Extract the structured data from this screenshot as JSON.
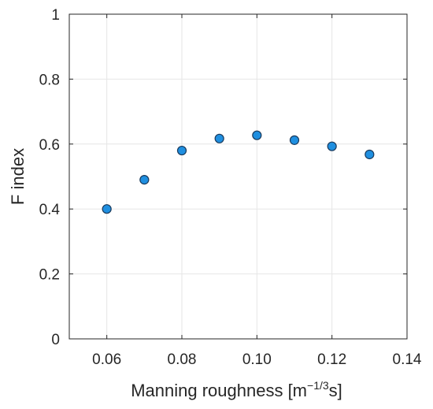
{
  "chart_data": {
    "type": "scatter",
    "xlabel_main": "Manning roughness  [m",
    "xlabel_sup": "−1/3",
    "xlabel_end": "s]",
    "ylabel": "F index",
    "xlim": [
      0.05,
      0.14
    ],
    "ylim": [
      0,
      1
    ],
    "x_ticks": [
      "0.06",
      "0.08",
      "0.10",
      "0.12",
      "0.14"
    ],
    "x_tick_values": [
      0.06,
      0.08,
      0.1,
      0.12,
      0.14
    ],
    "y_ticks": [
      "0",
      "0.2",
      "0.4",
      "0.6",
      "0.8",
      "1"
    ],
    "y_tick_values": [
      0,
      0.2,
      0.4,
      0.6,
      0.8,
      1
    ],
    "grid": true,
    "legend": "none",
    "series": [
      {
        "color": "#1f8fe0",
        "x": [
          0.06,
          0.07,
          0.08,
          0.09,
          0.1,
          0.11,
          0.12,
          0.13
        ],
        "y": [
          0.4,
          0.49,
          0.58,
          0.617,
          0.627,
          0.612,
          0.593,
          0.568
        ]
      }
    ]
  }
}
